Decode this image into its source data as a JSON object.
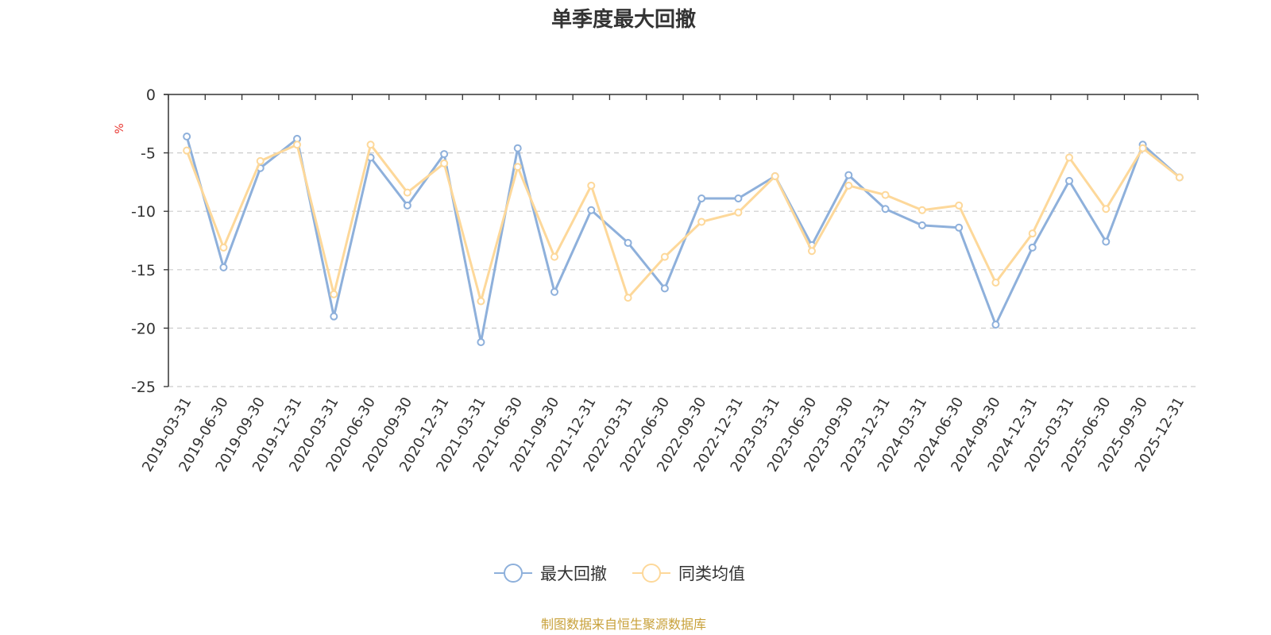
{
  "chart_data": {
    "type": "line",
    "title": "单季度最大回撤",
    "ylabel": "%",
    "ylim": [
      -25,
      0
    ],
    "yticks": [
      0,
      -5,
      -10,
      -15,
      -20,
      -25
    ],
    "grid": true,
    "legend_position": "bottom-center",
    "categories": [
      "2019-03-31",
      "2019-06-30",
      "2019-09-30",
      "2019-12-31",
      "2020-03-31",
      "2020-06-30",
      "2020-09-30",
      "2020-12-31",
      "2021-03-31",
      "2021-06-30",
      "2021-09-30",
      "2021-12-31",
      "2022-03-31",
      "2022-06-30",
      "2022-09-30",
      "2022-12-31",
      "2023-03-31",
      "2023-06-30",
      "2023-09-30",
      "2023-12-31",
      "2024-03-31",
      "2024-06-30",
      "2024-09-30",
      "2024-12-31",
      "2025-03-31",
      "2025-06-30",
      "2025-09-30",
      "2025-12-31"
    ],
    "series": [
      {
        "name": "最大回撤",
        "color": "#8eb0db",
        "values": [
          -3.6,
          -14.8,
          -6.3,
          -3.8,
          -19.0,
          -5.4,
          -9.5,
          -5.1,
          -21.2,
          -4.6,
          -16.9,
          -9.9,
          -12.7,
          -16.6,
          -8.9,
          -8.9,
          -7.0,
          -12.9,
          -6.9,
          -9.8,
          -11.2,
          -11.4,
          -19.7,
          -13.1,
          -7.4,
          -12.6,
          -4.3,
          -7.1
        ]
      },
      {
        "name": "同类均值",
        "color": "#fdd89a",
        "values": [
          -4.8,
          -13.1,
          -5.7,
          -4.3,
          -17.1,
          -4.3,
          -8.4,
          -5.9,
          -17.7,
          -6.2,
          -13.9,
          -7.8,
          -17.4,
          -13.9,
          -10.9,
          -10.1,
          -7.0,
          -13.4,
          -7.8,
          -8.6,
          -9.9,
          -9.5,
          -16.1,
          -11.9,
          -5.4,
          -9.8,
          -4.6,
          -7.1
        ]
      }
    ]
  },
  "source_note": "制图数据来自恒生聚源数据库",
  "colors": {
    "source_text": "#c8a13a",
    "unit_text": "#e8332d",
    "grid": "#cccccc",
    "axis": "#333333"
  }
}
